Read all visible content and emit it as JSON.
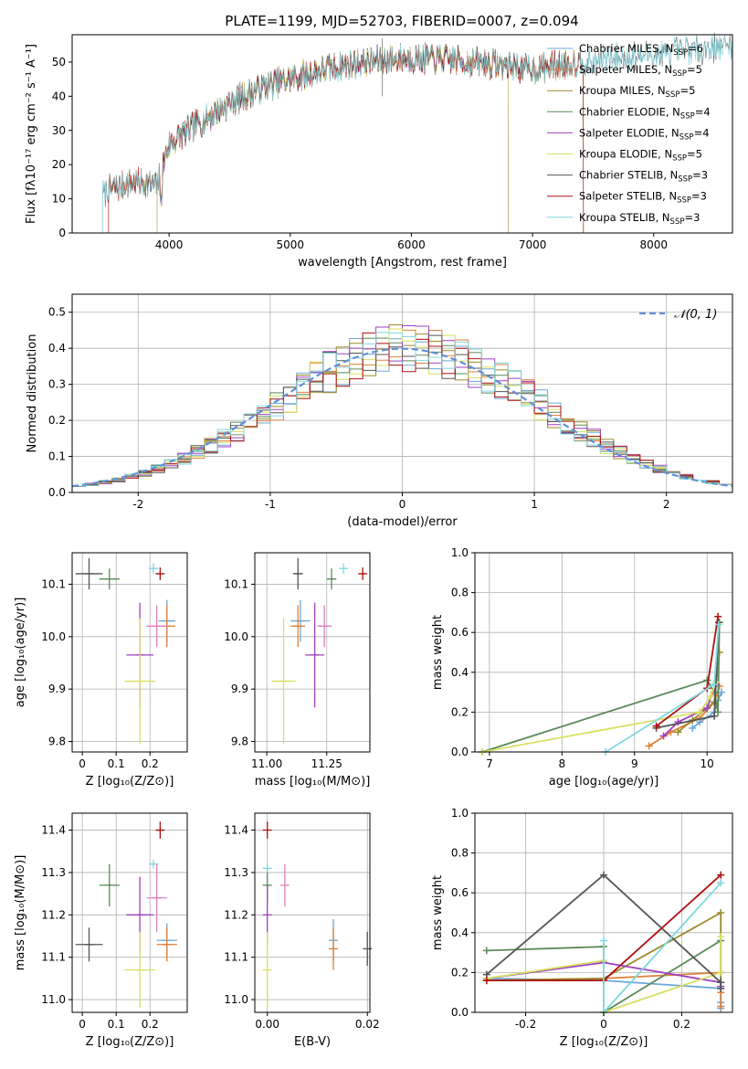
{
  "title": "PLATE=1199, MJD=52703, FIBERID=0007, z=0.094",
  "colors": {
    "series": [
      "#6aa8d8",
      "#e0803a",
      "#9a8a2a",
      "#5a8a5a",
      "#a040c0",
      "#d8e060",
      "#555555",
      "#b01010",
      "#80d8e0"
    ],
    "extra_pink": "#e080c0",
    "normal_curve": "#6090d8",
    "grid": "#b0b0b0"
  },
  "chart_data": [
    {
      "id": "spectrum",
      "type": "line",
      "xlabel": "wavelength [Angstrom, rest frame]",
      "ylabel": "Flux [fλ10⁻¹⁷ erg cm⁻² s⁻¹ A⁻¹]",
      "xlim": [
        3200,
        8650
      ],
      "ylim": [
        0,
        58
      ],
      "xticks": [
        4000,
        5000,
        6000,
        7000,
        8000
      ],
      "yticks": [
        0,
        10,
        20,
        30,
        40,
        50
      ],
      "legend_position": "top-right",
      "series": [
        {
          "name": "Chabrier MILES, N_SSP=6",
          "label": "Chabrier MILES, N",
          "sub": "SSP",
          "suffix": "=6",
          "range": [
            3500,
            7420
          ]
        },
        {
          "name": "Salpeter MILES, N_SSP=5",
          "label": "Salpeter MILES, N",
          "sub": "SSP",
          "suffix": "=5",
          "range": [
            3500,
            7420
          ]
        },
        {
          "name": "Kroupa MILES, N_SSP=5",
          "label": "Kroupa MILES, N",
          "sub": "SSP",
          "suffix": "=5",
          "range": [
            3500,
            7420
          ]
        },
        {
          "name": "Chabrier ELODIE, N_SSP=4",
          "label": "Chabrier ELODIE, N",
          "sub": "SSP",
          "suffix": "=4",
          "range": [
            3900,
            6800
          ]
        },
        {
          "name": "Salpeter ELODIE, N_SSP=4",
          "label": "Salpeter ELODIE, N",
          "sub": "SSP",
          "suffix": "=4",
          "range": [
            3900,
            6800
          ]
        },
        {
          "name": "Kroupa ELODIE, N_SSP=5",
          "label": "Kroupa ELODIE, N",
          "sub": "SSP",
          "suffix": "=5",
          "range": [
            3900,
            6800
          ]
        },
        {
          "name": "Chabrier STELIB, N_SSP=3",
          "label": "Chabrier STELIB, N",
          "sub": "SSP",
          "suffix": "=3",
          "range": [
            3450,
            8650
          ]
        },
        {
          "name": "Salpeter STELIB, N_SSP=3",
          "label": "Salpeter STELIB, N",
          "sub": "SSP",
          "suffix": "=3",
          "range": [
            3500,
            7420
          ]
        },
        {
          "name": "Kroupa STELIB, N_SSP=3",
          "label": "Kroupa STELIB, N",
          "sub": "SSP",
          "suffix": "=3",
          "range": [
            3450,
            8650
          ]
        }
      ],
      "continuum": {
        "x": [
          3450,
          3700,
          3900,
          4000,
          4200,
          4500,
          4800,
          5000,
          5300,
          5600,
          5900,
          6200,
          6500,
          6800,
          7000,
          7400,
          8000,
          8650
        ],
        "y": [
          12,
          15,
          14,
          26,
          31,
          38,
          43,
          45,
          48,
          50,
          51,
          51,
          50,
          49,
          48,
          50,
          52,
          55
        ]
      }
    },
    {
      "id": "residuals",
      "type": "bar",
      "xlabel": "(data-model)/error",
      "ylabel": "Normed distribution",
      "xlim": [
        -2.5,
        2.5
      ],
      "ylim": [
        0,
        0.55
      ],
      "xticks": [
        -2,
        -1,
        0,
        1,
        2
      ],
      "yticks": [
        0.0,
        0.1,
        0.2,
        0.3,
        0.4,
        0.5
      ],
      "bin_width": 0.1,
      "legend_label": "𝒩(0, 1)",
      "legend_position": "top-right"
    },
    {
      "id": "age_vs_Z",
      "type": "scatter",
      "xlabel": "Z [log₁₀(Z/Z⊙)]",
      "ylabel": "age  [log₁₀(age/yr)]",
      "xlim": [
        -0.03,
        0.31
      ],
      "ylim": [
        9.78,
        10.16
      ],
      "xticks": [
        0.0,
        0.1,
        0.2
      ],
      "yticks": [
        9.8,
        9.9,
        10.0,
        10.1
      ],
      "points": [
        {
          "series": 0,
          "x": 0.25,
          "y": 10.03,
          "xerr": 0.025,
          "yerr": 0.04
        },
        {
          "series": 1,
          "x": 0.25,
          "y": 10.02,
          "xerr": 0.025,
          "yerr": 0.04
        },
        {
          "series": 3,
          "x": 0.08,
          "y": 10.11,
          "xerr": 0.03,
          "yerr": 0.02
        },
        {
          "series": 4,
          "x": 0.17,
          "y": 9.965,
          "xerr": 0.04,
          "yerr": 0.1
        },
        {
          "series": 5,
          "x": 0.17,
          "y": 9.915,
          "xerr": 0.045,
          "yerr": 0.12
        },
        {
          "series": 6,
          "x": 0.02,
          "y": 10.12,
          "xerr": 0.04,
          "yerr": 0.03
        },
        {
          "series": 7,
          "x": 0.23,
          "y": 10.12,
          "xerr": 0.01,
          "yerr": 0.012
        },
        {
          "series": 8,
          "x": 0.21,
          "y": 10.13,
          "xerr": 0.012,
          "yerr": 0.01
        },
        {
          "series": -1,
          "x": 0.22,
          "y": 10.02,
          "xerr": 0.03,
          "yerr": 0.04
        }
      ]
    },
    {
      "id": "age_vs_mass",
      "type": "scatter",
      "xlabel": "mass [log₁₀(M/M⊙)]",
      "ylabel": "",
      "xlim": [
        10.95,
        11.43
      ],
      "ylim": [
        9.78,
        10.16
      ],
      "xticks": [
        11.0,
        11.25
      ],
      "xtick_labels": [
        "11.00",
        "11.25"
      ],
      "yticks": [
        9.8,
        9.9,
        10.0,
        10.1
      ],
      "points": [
        {
          "series": 0,
          "x": 11.14,
          "y": 10.03,
          "xerr": 0.04,
          "yerr": 0.04
        },
        {
          "series": 1,
          "x": 11.13,
          "y": 10.02,
          "xerr": 0.03,
          "yerr": 0.04
        },
        {
          "series": 3,
          "x": 11.27,
          "y": 10.11,
          "xerr": 0.02,
          "yerr": 0.02
        },
        {
          "series": 4,
          "x": 11.2,
          "y": 9.965,
          "xerr": 0.04,
          "yerr": 0.1
        },
        {
          "series": 5,
          "x": 11.07,
          "y": 9.915,
          "xerr": 0.05,
          "yerr": 0.12
        },
        {
          "series": 6,
          "x": 11.13,
          "y": 10.12,
          "xerr": 0.02,
          "yerr": 0.03
        },
        {
          "series": 7,
          "x": 11.4,
          "y": 10.12,
          "xerr": 0.01,
          "yerr": 0.012
        },
        {
          "series": 8,
          "x": 11.32,
          "y": 10.13,
          "xerr": 0.01,
          "yerr": 0.01
        },
        {
          "series": -1,
          "x": 11.24,
          "y": 10.02,
          "xerr": 0.03,
          "yerr": 0.04
        }
      ]
    },
    {
      "id": "weight_vs_age",
      "type": "line",
      "xlabel": "age  [log₁₀(age/yr)]",
      "ylabel": "mass weight",
      "xlim": [
        6.8,
        10.35
      ],
      "ylim": [
        0,
        1.0
      ],
      "xticks": [
        7,
        8,
        9,
        10
      ],
      "yticks": [
        0.0,
        0.2,
        0.4,
        0.6,
        0.8,
        1.0
      ],
      "series": [
        {
          "x": [
            9.8,
            9.9,
            10.1,
            10.15,
            10.2
          ],
          "y": [
            0.12,
            0.15,
            0.2,
            0.26,
            0.3
          ]
        },
        {
          "x": [
            9.2,
            9.5,
            9.9,
            10.1,
            10.17
          ],
          "y": [
            0.03,
            0.1,
            0.17,
            0.25,
            0.33
          ]
        },
        {
          "x": [
            9.6,
            9.8,
            10.1,
            10.17
          ],
          "y": [
            0.1,
            0.16,
            0.25,
            0.5
          ]
        },
        {
          "x": [
            6.9,
            10.0,
            10.1,
            10.15,
            10.17
          ],
          "y": [
            0.0,
            0.36,
            0.3,
            0.2,
            0.65
          ]
        },
        {
          "x": [
            9.4,
            9.6,
            10.0,
            10.12
          ],
          "y": [
            0.08,
            0.15,
            0.22,
            0.34
          ]
        },
        {
          "x": [
            6.9,
            9.9,
            10.05,
            10.12
          ],
          "y": [
            0.0,
            0.2,
            0.28,
            0.35
          ]
        },
        {
          "x": [
            9.3,
            10.1,
            10.16
          ],
          "y": [
            0.12,
            0.18,
            0.65
          ]
        },
        {
          "x": [
            9.3,
            10.0,
            10.15
          ],
          "y": [
            0.13,
            0.32,
            0.68
          ]
        },
        {
          "x": [
            8.6,
            10.1,
            10.16
          ],
          "y": [
            0.0,
            0.34,
            0.64
          ]
        }
      ]
    },
    {
      "id": "mass_vs_Z",
      "type": "scatter",
      "xlabel": "Z [log₁₀(Z/Z⊙)]",
      "ylabel": "mass [log₁₀(M/M⊙)]",
      "xlim": [
        -0.03,
        0.31
      ],
      "ylim": [
        10.97,
        11.44
      ],
      "xticks": [
        0.0,
        0.1,
        0.2
      ],
      "yticks": [
        11.0,
        11.1,
        11.2,
        11.3,
        11.4
      ],
      "points": [
        {
          "series": 0,
          "x": 0.25,
          "y": 11.14,
          "xerr": 0.03,
          "yerr": 0.04
        },
        {
          "series": 1,
          "x": 0.25,
          "y": 11.13,
          "xerr": 0.03,
          "yerr": 0.04
        },
        {
          "series": 3,
          "x": 0.08,
          "y": 11.27,
          "xerr": 0.03,
          "yerr": 0.05
        },
        {
          "series": 4,
          "x": 0.17,
          "y": 11.2,
          "xerr": 0.04,
          "yerr": 0.09
        },
        {
          "series": 5,
          "x": 0.17,
          "y": 11.07,
          "xerr": 0.045,
          "yerr": 0.09
        },
        {
          "series": 6,
          "x": 0.02,
          "y": 11.13,
          "xerr": 0.04,
          "yerr": 0.04
        },
        {
          "series": 7,
          "x": 0.23,
          "y": 11.4,
          "xerr": 0.01,
          "yerr": 0.02
        },
        {
          "series": 8,
          "x": 0.21,
          "y": 11.32,
          "xerr": 0.012,
          "yerr": 0.01
        },
        {
          "series": -1,
          "x": 0.22,
          "y": 11.24,
          "xerr": 0.03,
          "yerr": 0.08
        }
      ]
    },
    {
      "id": "mass_vs_EBV",
      "type": "scatter",
      "xlabel": "E(B-V)",
      "ylabel": "",
      "xlim": [
        -0.0025,
        0.0205
      ],
      "ylim": [
        10.97,
        11.44
      ],
      "xticks": [
        0.0,
        0.02
      ],
      "xtick_labels": [
        "0.00",
        "0.02"
      ],
      "yticks": [
        11.0,
        11.1,
        11.2,
        11.3,
        11.4
      ],
      "points": [
        {
          "series": 0,
          "x": 0.0132,
          "y": 11.14,
          "xerr": 0.0,
          "yerr": 0.05
        },
        {
          "series": 1,
          "x": 0.0132,
          "y": 11.12,
          "xerr": 0.0,
          "yerr": 0.05
        },
        {
          "series": 3,
          "x": 0.0,
          "y": 11.27,
          "xerr": 0.0,
          "yerr": 0.04
        },
        {
          "series": 4,
          "x": 0.0,
          "y": 11.2,
          "xerr": 0.0,
          "yerr": 0.07
        },
        {
          "series": 5,
          "x": 0.0,
          "y": 11.07,
          "xerr": 0.0,
          "yerr": 0.09
        },
        {
          "series": 6,
          "x": 0.02,
          "y": 11.12,
          "xerr": 0.0,
          "yerr": 0.04
        },
        {
          "series": 7,
          "x": 0.0,
          "y": 11.4,
          "xerr": 0.0,
          "yerr": 0.02
        },
        {
          "series": 8,
          "x": 0.0,
          "y": 11.31,
          "xerr": 0.0,
          "yerr": 0.01
        },
        {
          "series": -1,
          "x": 0.0035,
          "y": 11.27,
          "xerr": 0.0,
          "yerr": 0.05
        }
      ]
    },
    {
      "id": "weight_vs_Z",
      "type": "line",
      "xlabel": "Z [log₁₀(Z/Z⊙)]",
      "ylabel": "mass weight",
      "xlim": [
        -0.33,
        0.33
      ],
      "ylim": [
        0,
        1.0
      ],
      "xticks": [
        -0.2,
        0.0,
        0.2
      ],
      "yticks": [
        0.0,
        0.2,
        0.4,
        0.6,
        0.8,
        1.0
      ],
      "series": [
        {
          "x": [
            -0.3,
            0.0,
            0.3,
            0.3,
            0.3
          ],
          "y": [
            0.17,
            0.16,
            0.12,
            0.05,
            0.02
          ]
        },
        {
          "x": [
            -0.3,
            0.0,
            0.3,
            0.3,
            0.3
          ],
          "y": [
            0.16,
            0.17,
            0.2,
            0.1,
            0.03
          ]
        },
        {
          "x": [
            -0.3,
            0.0,
            0.3,
            0.3
          ],
          "y": [
            0.16,
            0.17,
            0.5,
            0.2
          ]
        },
        {
          "x": [
            -0.3,
            0.0,
            0.0,
            0.3,
            0.3
          ],
          "y": [
            0.31,
            0.33,
            0.0,
            0.36,
            0.15
          ]
        },
        {
          "x": [
            -0.3,
            0.0,
            0.3,
            0.3
          ],
          "y": [
            0.17,
            0.25,
            0.15,
            0.13
          ]
        },
        {
          "x": [
            -0.3,
            0.0,
            0.0,
            0.3,
            0.3
          ],
          "y": [
            0.17,
            0.26,
            0.0,
            0.2,
            0.38
          ]
        },
        {
          "x": [
            -0.3,
            0.0,
            0.3,
            0.3
          ],
          "y": [
            0.19,
            0.69,
            0.15,
            0.12
          ]
        },
        {
          "x": [
            -0.3,
            0.0,
            0.3
          ],
          "y": [
            0.16,
            0.16,
            0.69
          ]
        },
        {
          "x": [
            0.0,
            0.0,
            0.3
          ],
          "y": [
            0.36,
            0.0,
            0.65
          ]
        }
      ]
    }
  ]
}
